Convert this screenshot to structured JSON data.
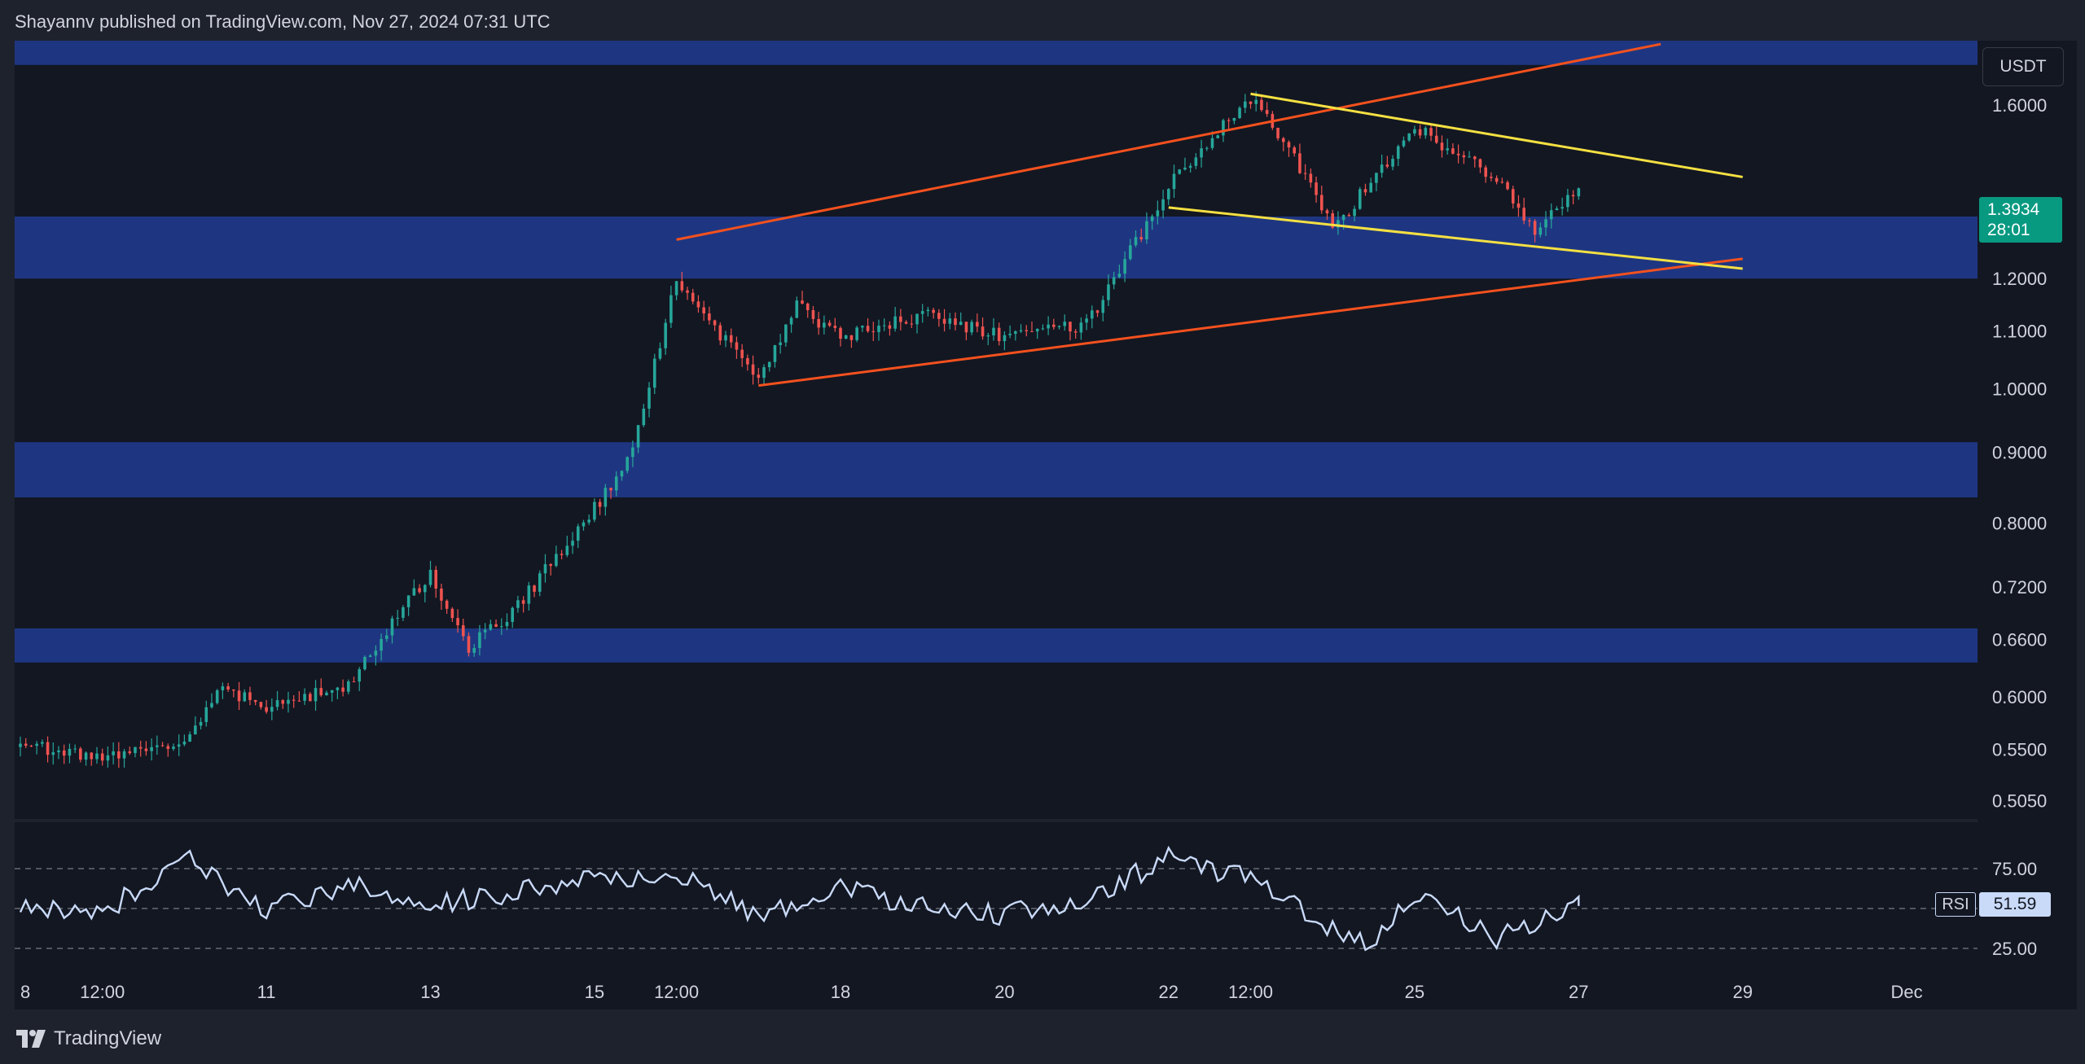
{
  "header": {
    "publisher_text": "Shayannv published on TradingView.com, Nov 27, 2024 07:31 UTC"
  },
  "footer": {
    "brand": "TradingView",
    "logo_icon": "tradingview-logo-icon"
  },
  "price_axis": {
    "currency": "USDT",
    "ticks": [
      "1.6000",
      "1.2000",
      "1.1000",
      "1.0000",
      "0.9000",
      "0.8000",
      "0.7200",
      "0.6600",
      "0.6000",
      "0.5500",
      "0.5050"
    ],
    "scale": "log"
  },
  "last_price": {
    "price": "1.3934",
    "countdown": "28:01",
    "color": "#089981"
  },
  "rsi": {
    "name": "RSI",
    "value": "51.59",
    "levels": [
      "75.00",
      "25.00"
    ],
    "line_color": "#c9daf8"
  },
  "time_axis": {
    "ticks": [
      "8",
      "12:00",
      "11",
      "13",
      "15",
      "12:00",
      "18",
      "20",
      "22",
      "12:00",
      "25",
      "27",
      "29",
      "Dec"
    ]
  },
  "colors": {
    "up": "#26a69a",
    "down": "#ef5350",
    "zone": "#1f3a8a",
    "wedge": "#f4511e",
    "flag": "#f5e042",
    "background": "#131722"
  },
  "chart_data": {
    "type": "candlestick",
    "symbol_quote": "USDT",
    "x_range": [
      "Nov 8, 2024",
      "Dec 1, 2024"
    ],
    "y_range": [
      0.49,
      1.78
    ],
    "y_scale": "log",
    "grid": false,
    "zones": [
      {
        "low": 1.71,
        "high": 1.8
      },
      {
        "low": 1.2,
        "high": 1.33
      },
      {
        "low": 0.835,
        "high": 0.915
      },
      {
        "low": 0.635,
        "high": 0.672
      }
    ],
    "trendlines": [
      {
        "name": "rising wedge upper",
        "color": "orange",
        "from": [
          "Nov 16",
          1.28
        ],
        "to": [
          "Nov 28",
          1.77
        ]
      },
      {
        "name": "rising wedge lower",
        "color": "orange",
        "from": [
          "Nov 17",
          1.005
        ],
        "to": [
          "Nov 29",
          1.24
        ]
      },
      {
        "name": "flag upper",
        "color": "yellow",
        "from": [
          "Nov 23",
          1.63
        ],
        "to": [
          "Nov 29",
          1.42
        ]
      },
      {
        "name": "flag lower",
        "color": "yellow",
        "from": [
          "Nov 22",
          1.35
        ],
        "to": [
          "Nov 29",
          1.22
        ]
      }
    ],
    "price_path": [
      [
        "Nov 8",
        0.552
      ],
      [
        "Nov 9",
        0.545
      ],
      [
        "Nov 10",
        0.56
      ],
      [
        "Nov 10",
        0.61
      ],
      [
        "Nov 11",
        0.59
      ],
      [
        "Nov 12",
        0.61
      ],
      [
        "Nov 13",
        0.74
      ],
      [
        "Nov 13",
        0.65
      ],
      [
        "Nov 14",
        0.69
      ],
      [
        "Nov 15",
        0.82
      ],
      [
        "Nov 15",
        0.9
      ],
      [
        "Nov 16",
        1.2
      ],
      [
        "Nov 17",
        1.01
      ],
      [
        "Nov 17",
        1.15
      ],
      [
        "Nov 18",
        1.09
      ],
      [
        "Nov 19",
        1.13
      ],
      [
        "Nov 20",
        1.09
      ],
      [
        "Nov 21",
        1.11
      ],
      [
        "Nov 22",
        1.4
      ],
      [
        "Nov 23",
        1.62
      ],
      [
        "Nov 23",
        1.5
      ],
      [
        "Nov 24",
        1.3
      ],
      [
        "Nov 25",
        1.54
      ],
      [
        "Nov 26",
        1.42
      ],
      [
        "Nov 26",
        1.3
      ],
      [
        "Nov 27",
        1.393
      ]
    ],
    "rsi_path": [
      [
        "Nov 8",
        50
      ],
      [
        "Nov 9",
        47
      ],
      [
        "Nov 10",
        82
      ],
      [
        "Nov 11",
        48
      ],
      [
        "Nov 12",
        65
      ],
      [
        "Nov 13",
        52
      ],
      [
        "Nov 14",
        60
      ],
      [
        "Nov 15",
        68
      ],
      [
        "Nov 16",
        74
      ],
      [
        "Nov 17",
        45
      ],
      [
        "Nov 18",
        62
      ],
      [
        "Nov 19",
        50
      ],
      [
        "Nov 20",
        46
      ],
      [
        "Nov 21",
        55
      ],
      [
        "Nov 22",
        82
      ],
      [
        "Nov 23",
        68
      ],
      [
        "Nov 24",
        36
      ],
      [
        "Nov 24",
        28
      ],
      [
        "Nov 25",
        57
      ],
      [
        "Nov 26",
        32
      ],
      [
        "Nov 27",
        51.59
      ]
    ]
  }
}
